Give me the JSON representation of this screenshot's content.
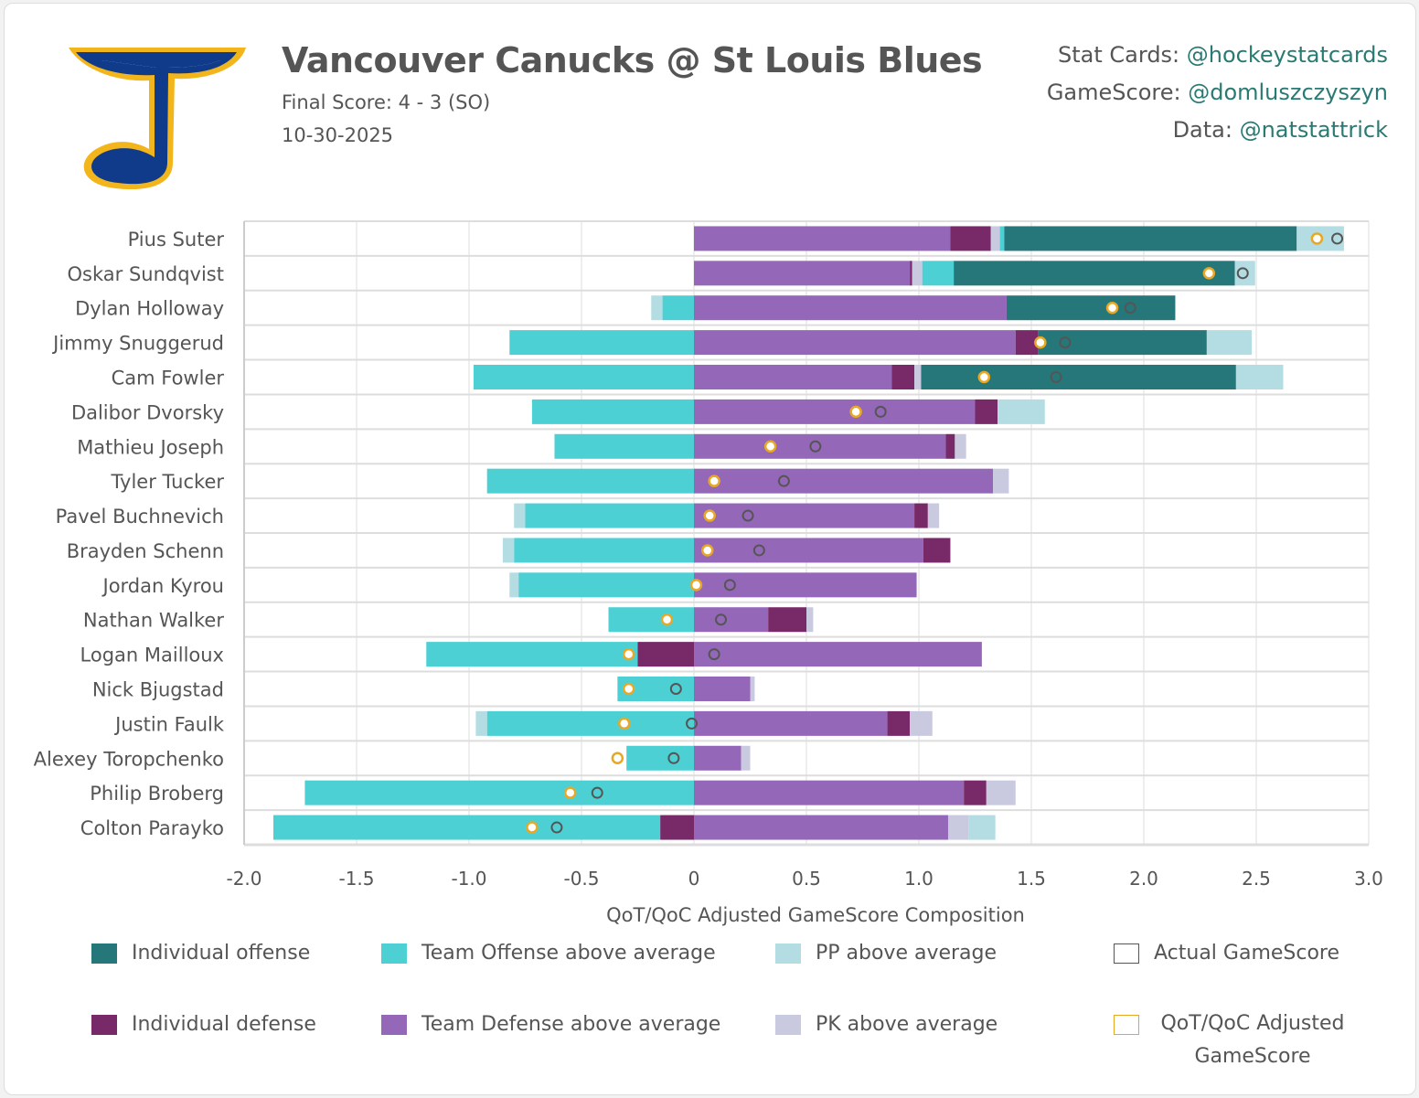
{
  "header": {
    "title": "Vancouver Canucks @ St Louis Blues",
    "final_score": "Final Score: 4 - 3 (SO)",
    "date": "10-30-2025",
    "credits": [
      {
        "label": "Stat Cards: ",
        "handle": "@hockeystatcards"
      },
      {
        "label": "GameScore: ",
        "handle": "@domluszczyszyn"
      },
      {
        "label": "Data: ",
        "handle": "@natstattrick"
      }
    ]
  },
  "colors": {
    "ind_off": "#26777a",
    "team_off": "#4dd0d4",
    "pp": "#b3dde2",
    "ind_def": "#782a68",
    "team_def": "#9467b8",
    "pk": "#c9cae0",
    "actual": "#555555",
    "adjusted": "#e8a825"
  },
  "chart_data": {
    "type": "bar",
    "orientation": "horizontal-stacked-diverging",
    "xlabel": "QoT/QoC Adjusted GameScore Composition",
    "xlim": [
      -2.0,
      3.0
    ],
    "xticks": [
      "-2.0",
      "-1.5",
      "-1.0",
      "-0.5",
      "0",
      "0.5",
      "1.0",
      "1.5",
      "2.0",
      "2.5",
      "3.0"
    ],
    "xtick_values": [
      -2,
      -1.5,
      -1,
      -0.5,
      0,
      0.5,
      1,
      1.5,
      2,
      2.5,
      3
    ],
    "grid": true,
    "legend": [
      {
        "key": "ind_off",
        "label": "Individual offense"
      },
      {
        "key": "team_off",
        "label": "Team Offense above average"
      },
      {
        "key": "pp",
        "label": "PP above average"
      },
      {
        "key": "actual",
        "label": "Actual GameScore"
      },
      {
        "key": "ind_def",
        "label": "Individual defense"
      },
      {
        "key": "team_def",
        "label": "Team Defense above average"
      },
      {
        "key": "pk",
        "label": "PK above average"
      },
      {
        "key": "adjusted",
        "label": "QoT/QoC Adjusted GameScore"
      }
    ],
    "players": [
      {
        "name": "Pius Suter",
        "pos": [
          [
            "team_def",
            1.14
          ],
          [
            "ind_def",
            0.18
          ],
          [
            "pk",
            0.04
          ],
          [
            "team_off",
            0.02
          ],
          [
            "ind_off",
            1.3
          ],
          [
            "pp",
            0.21
          ]
        ],
        "neg": [],
        "adjusted": 2.77,
        "actual": 2.86
      },
      {
        "name": "Oskar Sundqvist",
        "pos": [
          [
            "team_def",
            0.96
          ],
          [
            "ind_def",
            0.01
          ],
          [
            "pk",
            0.045
          ],
          [
            "team_off",
            0.14
          ],
          [
            "ind_off",
            1.25
          ],
          [
            "pp",
            0.09
          ]
        ],
        "neg": [],
        "adjusted": 2.29,
        "actual": 2.44
      },
      {
        "name": "Dylan Holloway",
        "pos": [
          [
            "team_def",
            1.39
          ],
          [
            "ind_off",
            0.75
          ]
        ],
        "neg": [
          [
            "team_off",
            0.14
          ],
          [
            "pp",
            0.05
          ]
        ],
        "adjusted": 1.86,
        "actual": 1.94
      },
      {
        "name": "Jimmy Snuggerud",
        "pos": [
          [
            "team_def",
            1.43
          ],
          [
            "ind_def",
            0.1
          ],
          [
            "ind_off",
            0.75
          ],
          [
            "pp",
            0.2
          ]
        ],
        "neg": [
          [
            "team_off",
            0.82
          ]
        ],
        "adjusted": 1.54,
        "actual": 1.65
      },
      {
        "name": "Cam Fowler",
        "pos": [
          [
            "team_def",
            0.88
          ],
          [
            "ind_def",
            0.1
          ],
          [
            "pk",
            0.03
          ],
          [
            "ind_off",
            1.4
          ],
          [
            "pp",
            0.21
          ]
        ],
        "neg": [
          [
            "team_off",
            0.98
          ]
        ],
        "adjusted": 1.29,
        "actual": 1.61
      },
      {
        "name": "Dalibor Dvorsky",
        "pos": [
          [
            "team_def",
            1.25
          ],
          [
            "ind_def",
            0.1
          ],
          [
            "pp",
            0.21
          ]
        ],
        "neg": [
          [
            "team_off",
            0.72
          ]
        ],
        "adjusted": 0.72,
        "actual": 0.83
      },
      {
        "name": "Mathieu Joseph",
        "pos": [
          [
            "team_def",
            1.12
          ],
          [
            "ind_def",
            0.04
          ],
          [
            "pk",
            0.05
          ]
        ],
        "neg": [
          [
            "team_off",
            0.62
          ]
        ],
        "adjusted": 0.34,
        "actual": 0.54
      },
      {
        "name": "Tyler Tucker",
        "pos": [
          [
            "team_def",
            1.33
          ],
          [
            "pk",
            0.07
          ]
        ],
        "neg": [
          [
            "team_off",
            0.92
          ]
        ],
        "adjusted": 0.09,
        "actual": 0.4
      },
      {
        "name": "Pavel Buchnevich",
        "pos": [
          [
            "team_def",
            0.98
          ],
          [
            "ind_def",
            0.06
          ],
          [
            "pk",
            0.05
          ]
        ],
        "neg": [
          [
            "team_off",
            0.75
          ],
          [
            "pp",
            0.05
          ]
        ],
        "adjusted": 0.07,
        "actual": 0.24
      },
      {
        "name": "Brayden Schenn",
        "pos": [
          [
            "team_def",
            1.02
          ],
          [
            "ind_def",
            0.12
          ]
        ],
        "neg": [
          [
            "team_off",
            0.8
          ],
          [
            "pp",
            0.05
          ]
        ],
        "adjusted": 0.06,
        "actual": 0.29
      },
      {
        "name": "Jordan Kyrou",
        "pos": [
          [
            "team_def",
            0.99
          ]
        ],
        "neg": [
          [
            "team_off",
            0.78
          ],
          [
            "pp",
            0.04
          ]
        ],
        "adjusted": 0.01,
        "actual": 0.16
      },
      {
        "name": "Nathan Walker",
        "pos": [
          [
            "team_def",
            0.33
          ],
          [
            "ind_def",
            0.17
          ],
          [
            "pk",
            0.03
          ]
        ],
        "neg": [
          [
            "team_off",
            0.38
          ]
        ],
        "adjusted": -0.12,
        "actual": 0.12
      },
      {
        "name": "Logan Mailloux",
        "pos": [
          [
            "team_def",
            1.28
          ]
        ],
        "neg": [
          [
            "ind_def",
            0.25
          ],
          [
            "team_off",
            0.94
          ]
        ],
        "adjusted": -0.29,
        "actual": 0.09
      },
      {
        "name": "Nick Bjugstad",
        "pos": [
          [
            "team_def",
            0.25
          ],
          [
            "pk",
            0.02
          ]
        ],
        "neg": [
          [
            "team_off",
            0.34
          ]
        ],
        "adjusted": -0.29,
        "actual": -0.08
      },
      {
        "name": "Justin Faulk",
        "pos": [
          [
            "team_def",
            0.86
          ],
          [
            "ind_def",
            0.1
          ],
          [
            "pk",
            0.1
          ]
        ],
        "neg": [
          [
            "team_off",
            0.92
          ],
          [
            "pp",
            0.05
          ]
        ],
        "adjusted": -0.31,
        "actual": -0.01
      },
      {
        "name": "Alexey Toropchenko",
        "pos": [
          [
            "team_def",
            0.21
          ],
          [
            "pk",
            0.04
          ]
        ],
        "neg": [
          [
            "team_off",
            0.3
          ]
        ],
        "adjusted": -0.34,
        "actual": -0.09
      },
      {
        "name": "Philip Broberg",
        "pos": [
          [
            "team_def",
            1.2
          ],
          [
            "ind_def",
            0.1
          ],
          [
            "pk",
            0.13
          ]
        ],
        "neg": [
          [
            "team_off",
            1.73
          ]
        ],
        "adjusted": -0.55,
        "actual": -0.43
      },
      {
        "name": "Colton Parayko",
        "pos": [
          [
            "team_def",
            1.13
          ],
          [
            "pk",
            0.09
          ],
          [
            "pp",
            0.12
          ]
        ],
        "neg": [
          [
            "ind_def",
            0.15
          ],
          [
            "team_off",
            1.72
          ]
        ],
        "adjusted": -0.72,
        "actual": -0.61
      }
    ]
  }
}
